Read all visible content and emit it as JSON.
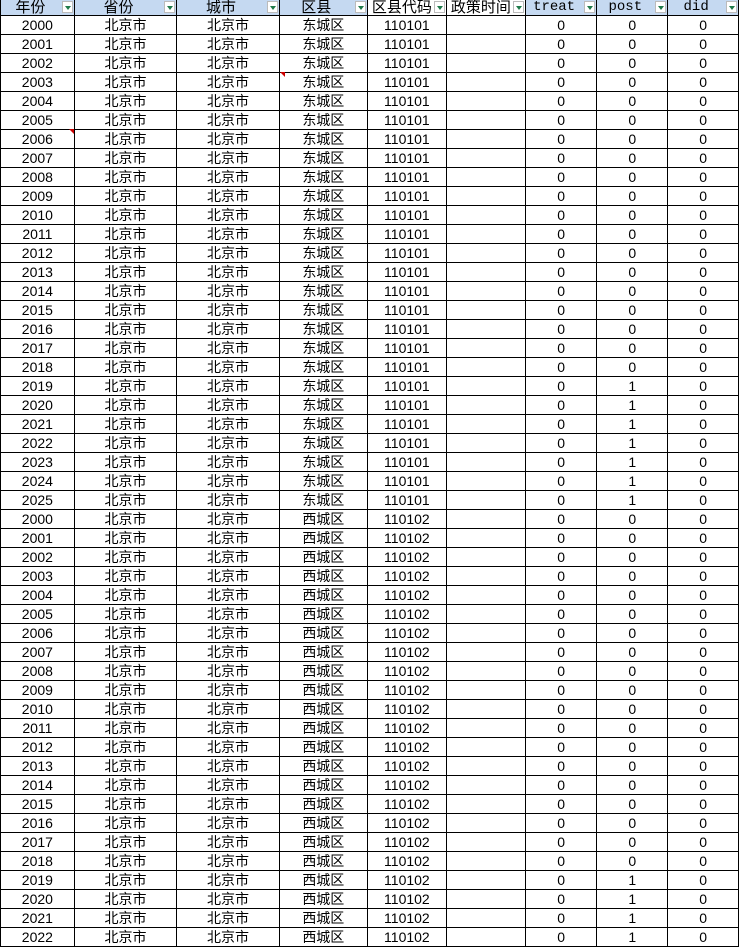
{
  "headers": [
    "年份",
    "省份",
    "城市",
    "区县",
    "区县代码",
    "政策时间",
    "treat",
    "post",
    "did"
  ],
  "rows": [],
  "blocks": [
    {
      "province": "北京市",
      "city": "北京市",
      "district": "东城区",
      "code": "110101",
      "years": [
        2000,
        2025
      ],
      "post_from": 2019
    },
    {
      "province": "北京市",
      "city": "北京市",
      "district": "西城区",
      "code": "110102",
      "years": [
        2000,
        2022
      ],
      "post_from": 2019
    }
  ],
  "colors": {
    "header_bg": "#c5d9f1",
    "filter_arrow": "#1f7a4a",
    "comment_marker": "#c00000"
  }
}
